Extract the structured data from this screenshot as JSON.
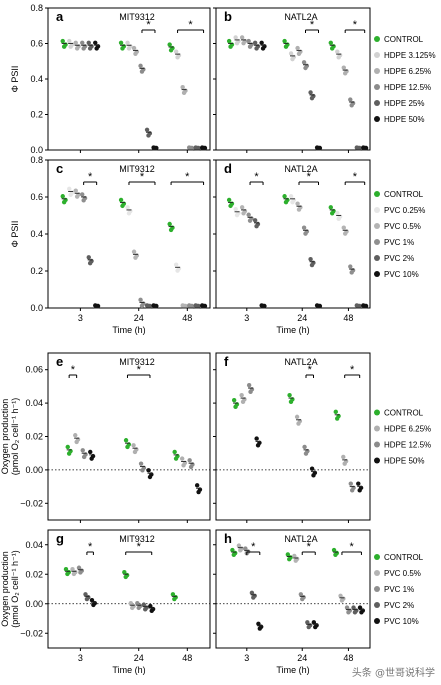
{
  "watermark": "头条 @世哥说科学",
  "colors": {
    "CONTROL": "#2db02d",
    "HDPE 3.125%": "#d2d2d2",
    "HDPE 6.25%": "#b0b0b0",
    "HDPE 12.5%": "#8c8c8c",
    "HDPE 25%": "#5f5f5f",
    "HDPE 50%": "#111111",
    "PVC 0.25%": "#e6e6e6",
    "PVC 0.5%": "#b4b4b4",
    "PVC 1%": "#8f8f8f",
    "PVC 2%": "#5f5f5f",
    "PVC 10%": "#111111"
  },
  "legends": [
    {
      "rows": [
        "a",
        "b"
      ],
      "entries": [
        "CONTROL",
        "HDPE 3.125%",
        "HDPE 6.25%",
        "HDPE 12.5%",
        "HDPE 25%",
        "HDPE 50%"
      ]
    },
    {
      "rows": [
        "c",
        "d"
      ],
      "entries": [
        "CONTROL",
        "PVC 0.25%",
        "PVC 0.5%",
        "PVC 1%",
        "PVC 2%",
        "PVC 10%"
      ]
    },
    {
      "rows": [
        "e",
        "f"
      ],
      "entries": [
        "CONTROL",
        "HDPE 6.25%",
        "HDPE 12.5%",
        "HDPE 50%"
      ]
    },
    {
      "rows": [
        "g",
        "h"
      ],
      "entries": [
        "CONTROL",
        "PVC 0.5%",
        "PVC 1%",
        "PVC 2%",
        "PVC 10%"
      ]
    }
  ],
  "row_axes": [
    {
      "ylabel": [
        "Φ PSII"
      ],
      "ylim": [
        0,
        0.8
      ],
      "yticks": [
        "0.0",
        "0.2",
        "0.4",
        "0.6",
        "0.8"
      ],
      "dotted_zero": false
    },
    {
      "ylabel": [
        "Φ PSII"
      ],
      "ylim": [
        0,
        0.8
      ],
      "yticks": [
        "0.0",
        "0.2",
        "0.4",
        "0.6",
        "0.8"
      ],
      "dotted_zero": false
    },
    {
      "ylabel": [
        "Oxygen production",
        "(pmol O₂ cell⁻¹ h⁻¹)"
      ],
      "ylim": [
        -0.03,
        0.07
      ],
      "yticks": [
        "−0.02",
        "0.00",
        "0.02",
        "0.04",
        "0.06"
      ],
      "dotted_zero": true
    },
    {
      "ylabel": [
        "Oxygen production",
        "(pmol O₂ cell⁻¹ h⁻¹)"
      ],
      "ylim": [
        -0.03,
        0.05
      ],
      "yticks": [
        "−0.02",
        "0.00",
        "0.02",
        "0.04"
      ],
      "dotted_zero": true
    }
  ],
  "x_axis": {
    "label": "Time (h)",
    "ticks": [
      "3",
      "24",
      "48"
    ]
  },
  "chart_data": [
    {
      "panel": "a",
      "title": "MIT9312",
      "type": "scatter",
      "series_names": [
        "CONTROL",
        "HDPE 3.125%",
        "HDPE 6.25%",
        "HDPE 12.5%",
        "HDPE 25%",
        "HDPE 50%"
      ],
      "groups": [
        {
          "x": "3",
          "means": [
            0.6,
            0.6,
            0.59,
            0.59,
            0.59,
            0.59
          ]
        },
        {
          "x": "24",
          "means": [
            0.59,
            0.59,
            0.56,
            0.46,
            0.1,
            0.0
          ]
        },
        {
          "x": "48",
          "means": [
            0.58,
            0.54,
            0.34,
            0.0,
            0.0,
            0.0
          ]
        }
      ],
      "significance": [
        {
          "group": "24",
          "from": 3,
          "to": 5
        },
        {
          "group": "48",
          "from": 1,
          "to": 5
        }
      ]
    },
    {
      "panel": "b",
      "title": "NATL2A",
      "type": "scatter",
      "series_names": [
        "CONTROL",
        "HDPE 3.125%",
        "HDPE 6.25%",
        "HDPE 12.5%",
        "HDPE 25%",
        "HDPE 50%"
      ],
      "groups": [
        {
          "x": "3",
          "means": [
            0.6,
            0.62,
            0.62,
            0.6,
            0.59,
            0.59
          ]
        },
        {
          "x": "24",
          "means": [
            0.6,
            0.53,
            0.56,
            0.48,
            0.31,
            0.0
          ]
        },
        {
          "x": "48",
          "means": [
            0.59,
            0.54,
            0.45,
            0.27,
            0.0,
            0.0
          ]
        }
      ],
      "significance": [
        {
          "group": "24",
          "from": 3,
          "to": 5
        },
        {
          "group": "48",
          "from": 2,
          "to": 5
        }
      ]
    },
    {
      "panel": "c",
      "title": "MIT9312",
      "type": "scatter",
      "series_names": [
        "CONTROL",
        "PVC 0.25%",
        "PVC 0.5%",
        "PVC 1%",
        "PVC 2%",
        "PVC 10%"
      ],
      "groups": [
        {
          "x": "3",
          "means": [
            0.59,
            0.63,
            0.62,
            0.6,
            0.26,
            0.0
          ]
        },
        {
          "x": "24",
          "means": [
            0.57,
            0.53,
            0.29,
            0.03,
            0.0,
            0.0
          ]
        },
        {
          "x": "48",
          "means": [
            0.44,
            0.22,
            0.0,
            0.0,
            0.0,
            0.0
          ]
        }
      ],
      "significance": [
        {
          "group": "3",
          "from": 3,
          "to": 5
        },
        {
          "group": "24",
          "from": 1,
          "to": 5
        },
        {
          "group": "48",
          "from": 0,
          "to": 5
        }
      ]
    },
    {
      "panel": "d",
      "title": "NATL2A",
      "type": "scatter",
      "series_names": [
        "CONTROL",
        "PVC 0.25%",
        "PVC 0.5%",
        "PVC 1%",
        "PVC 2%",
        "PVC 10%"
      ],
      "groups": [
        {
          "x": "3",
          "means": [
            0.57,
            0.52,
            0.53,
            0.49,
            0.46,
            0.0
          ]
        },
        {
          "x": "24",
          "means": [
            0.59,
            0.59,
            0.55,
            0.42,
            0.25,
            0.0
          ]
        },
        {
          "x": "48",
          "means": [
            0.53,
            0.5,
            0.42,
            0.21,
            0.0,
            0.0
          ]
        }
      ],
      "significance": [
        {
          "group": "3",
          "from": 3,
          "to": 5
        },
        {
          "group": "24",
          "from": 2,
          "to": 5
        },
        {
          "group": "48",
          "from": 2,
          "to": 5
        }
      ]
    },
    {
      "panel": "e",
      "title": "MIT9312",
      "type": "scatter",
      "series_names": [
        "CONTROL",
        "HDPE 6.25%",
        "HDPE 12.5%",
        "HDPE 50%"
      ],
      "groups": [
        {
          "x": "3",
          "means": [
            0.012,
            0.019,
            0.01,
            0.009
          ]
        },
        {
          "x": "24",
          "means": [
            0.016,
            0.013,
            0.002,
            -0.002
          ]
        },
        {
          "x": "48",
          "means": [
            0.009,
            0.005,
            0.004,
            -0.011
          ]
        }
      ],
      "significance": [
        {
          "group": "3",
          "from": 0,
          "to": 1
        },
        {
          "group": "24",
          "from": 0,
          "to": 3
        }
      ]
    },
    {
      "panel": "f",
      "title": "NATL2A",
      "type": "scatter",
      "series_names": [
        "CONTROL",
        "HDPE 6.25%",
        "HDPE 12.5%",
        "HDPE 50%"
      ],
      "groups": [
        {
          "x": "3",
          "means": [
            0.04,
            0.043,
            0.049,
            0.017
          ]
        },
        {
          "x": "24",
          "means": [
            0.043,
            0.03,
            0.012,
            -0.001
          ]
        },
        {
          "x": "48",
          "means": [
            0.033,
            0.006,
            -0.01,
            -0.01
          ]
        }
      ],
      "significance": [
        {
          "group": "24",
          "from": 2,
          "to": 3
        },
        {
          "group": "48",
          "from": 1,
          "to": 3
        }
      ]
    },
    {
      "panel": "g",
      "title": "MIT9312",
      "type": "scatter",
      "series_names": [
        "CONTROL",
        "PVC 0.5%",
        "PVC 1%",
        "PVC 2%",
        "PVC 10%"
      ],
      "groups": [
        {
          "x": "3",
          "means": [
            0.022,
            0.022,
            0.023,
            0.005,
            0.001
          ]
        },
        {
          "x": "24",
          "means": [
            0.02,
            -0.001,
            -0.001,
            -0.002,
            -0.003
          ]
        },
        {
          "x": "48",
          "means": [
            0.005,
            null,
            null,
            null,
            null
          ]
        }
      ],
      "significance": [
        {
          "group": "3",
          "from": 3,
          "to": 4
        },
        {
          "group": "24",
          "from": 0,
          "to": 4
        }
      ]
    },
    {
      "panel": "h",
      "title": "NATL2A",
      "type": "scatter",
      "series_names": [
        "CONTROL",
        "PVC 0.5%",
        "PVC 1%",
        "PVC 2%",
        "PVC 10%"
      ],
      "groups": [
        {
          "x": "3",
          "means": [
            0.035,
            0.038,
            0.036,
            0.006,
            -0.015
          ]
        },
        {
          "x": "24",
          "means": [
            0.032,
            0.031,
            0.005,
            -0.014,
            -0.014
          ]
        },
        {
          "x": "48",
          "means": [
            0.035,
            0.004,
            -0.004,
            -0.004,
            -0.004
          ]
        }
      ],
      "significance": [
        {
          "group": "3",
          "from": 2,
          "to": 4
        },
        {
          "group": "24",
          "from": 2,
          "to": 4
        },
        {
          "group": "48",
          "from": 1,
          "to": 4
        }
      ]
    }
  ]
}
